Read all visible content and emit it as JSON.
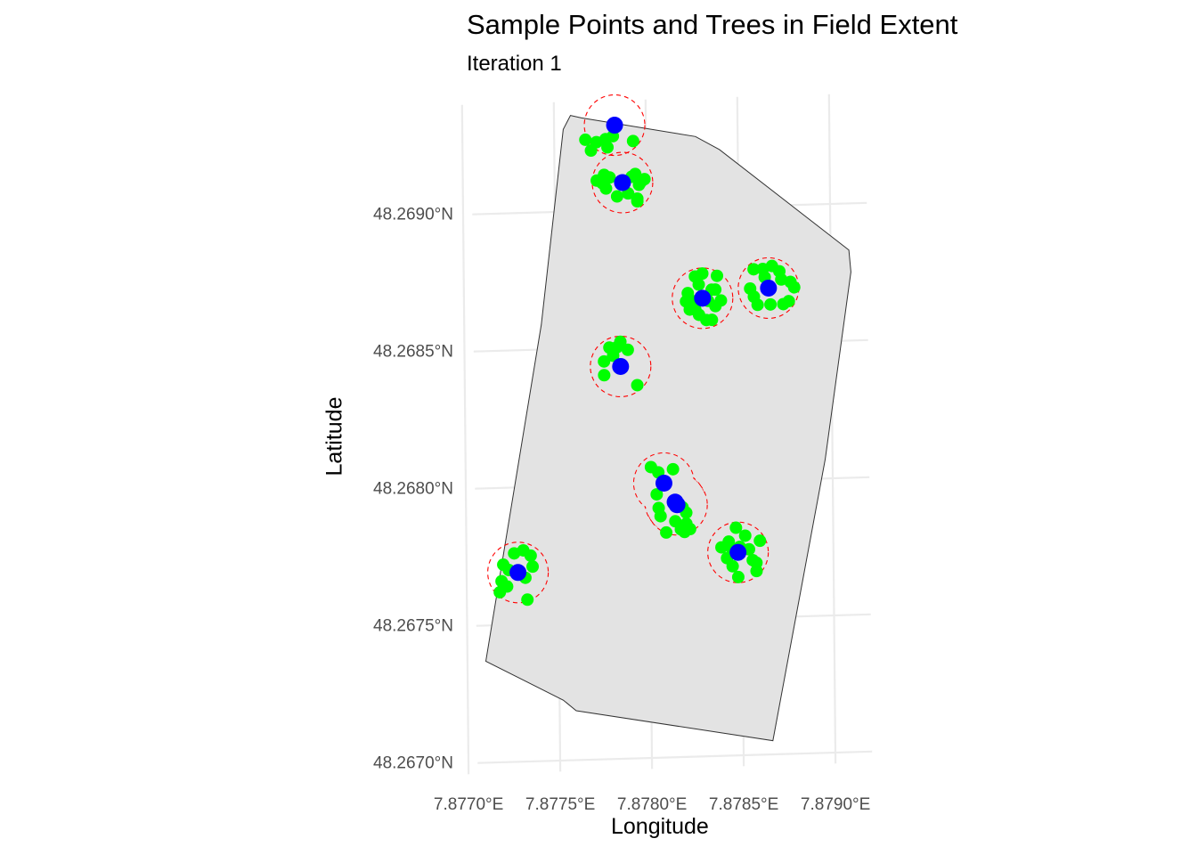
{
  "chart_data": {
    "type": "scatter",
    "title": "Sample Points and Trees in Field Extent",
    "subtitle": "Iteration 1",
    "xlabel": "Longitude",
    "ylabel": "Latitude",
    "xlim": [
      7.87705,
      7.8792
    ],
    "ylim": [
      48.26696,
      48.2694
    ],
    "x_ticks": [
      7.877,
      7.8775,
      7.878,
      7.8785,
      7.879
    ],
    "x_tick_labels": [
      "7.8770°E",
      "7.8775°E",
      "7.8780°E",
      "7.8785°E",
      "7.8790°E"
    ],
    "y_ticks": [
      48.267,
      48.2675,
      48.268,
      48.2685,
      48.269
    ],
    "y_tick_labels": [
      "48.2670°N",
      "48.2675°N",
      "48.2680°N",
      "48.2685°N",
      "48.2690°N"
    ],
    "grid": true,
    "colors": {
      "field_fill": "#e3e3e3",
      "field_stroke": "#333333",
      "trees": "#00ff00",
      "sample_points": "#0000ff",
      "buffer": "#ff0000",
      "grid": "#ebebeb"
    },
    "field_polygon": [
      [
        7.87759,
        48.26935
      ],
      [
        7.87765,
        48.26934
      ],
      [
        7.87827,
        48.26926
      ],
      [
        7.8784,
        48.26921
      ],
      [
        7.8791,
        48.26883
      ],
      [
        7.87911,
        48.26875
      ],
      [
        7.87896,
        48.26807
      ],
      [
        7.87866,
        48.26705
      ],
      [
        7.87759,
        48.26718
      ],
      [
        7.87752,
        48.26722
      ],
      [
        7.8771,
        48.26737
      ],
      [
        7.87742,
        48.26859
      ],
      [
        7.87755,
        48.2693
      ]
    ],
    "sample_points": [
      [
        7.87783,
        48.26931
      ],
      [
        7.87787,
        48.2691
      ],
      [
        7.8783,
        48.26867
      ],
      [
        7.87866,
        48.2687
      ],
      [
        7.87785,
        48.26843
      ],
      [
        7.87808,
        48.268
      ],
      [
        7.87814,
        48.26793
      ],
      [
        7.87815,
        48.26792
      ],
      [
        7.87848,
        48.26774
      ],
      [
        7.87728,
        48.26769
      ]
    ],
    "buffer_clusters": [
      [
        [
          7.87783,
          48.26931
        ]
      ],
      [
        [
          7.87787,
          48.2691
        ]
      ],
      [
        [
          7.8783,
          48.26867
        ]
      ],
      [
        [
          7.87866,
          48.2687
        ]
      ],
      [
        [
          7.87785,
          48.26843
        ]
      ],
      [
        [
          7.87808,
          48.268
        ],
        [
          7.87814,
          48.26793
        ],
        [
          7.87815,
          48.26792
        ]
      ],
      [
        [
          7.87848,
          48.26774
        ]
      ],
      [
        [
          7.87728,
          48.26769
        ]
      ]
    ],
    "trees": [
      [
        7.87767,
        48.26926
      ],
      [
        7.87773,
        48.26925
      ],
      [
        7.87778,
        48.26926
      ],
      [
        7.8777,
        48.26922
      ],
      [
        7.87793,
        48.26925
      ],
      [
        7.87779,
        48.26923
      ],
      [
        7.87782,
        48.26927
      ],
      [
        7.87773,
        48.26911
      ],
      [
        7.87778,
        48.26908
      ],
      [
        7.8778,
        48.26912
      ],
      [
        7.87794,
        48.26913
      ],
      [
        7.87797,
        48.2691
      ],
      [
        7.8779,
        48.26906
      ],
      [
        7.87784,
        48.26905
      ],
      [
        7.87795,
        48.26904
      ],
      [
        7.87796,
        48.26909
      ],
      [
        7.87799,
        48.26911
      ],
      [
        7.87776,
        48.2691
      ],
      [
        7.87792,
        48.26912
      ],
      [
        7.87795,
        48.26903
      ],
      [
        7.87777,
        48.26913
      ],
      [
        7.87826,
        48.26875
      ],
      [
        7.8783,
        48.26876
      ],
      [
        7.87838,
        48.26875
      ],
      [
        7.87822,
        48.26869
      ],
      [
        7.87835,
        48.2687
      ],
      [
        7.87823,
        48.26863
      ],
      [
        7.87825,
        48.26866
      ],
      [
        7.87828,
        48.26861
      ],
      [
        7.87832,
        48.26859
      ],
      [
        7.87837,
        48.26864
      ],
      [
        7.8784,
        48.26866
      ],
      [
        7.87835,
        48.26859
      ],
      [
        7.87828,
        48.26872
      ],
      [
        7.87821,
        48.26866
      ],
      [
        7.87833,
        48.26866
      ],
      [
        7.87837,
        48.2687
      ],
      [
        7.87826,
        48.26863
      ],
      [
        7.87858,
        48.26877
      ],
      [
        7.87863,
        48.26877
      ],
      [
        7.87868,
        48.26878
      ],
      [
        7.87872,
        48.26876
      ],
      [
        7.87878,
        48.26872
      ],
      [
        7.8788,
        48.2687
      ],
      [
        7.87858,
        48.26867
      ],
      [
        7.8786,
        48.26864
      ],
      [
        7.87867,
        48.26864
      ],
      [
        7.87874,
        48.26864
      ],
      [
        7.87877,
        48.26865
      ],
      [
        7.87864,
        48.26874
      ],
      [
        7.87873,
        48.26873
      ],
      [
        7.87856,
        48.2687
      ],
      [
        7.87779,
        48.2685
      ],
      [
        7.87783,
        48.2685
      ],
      [
        7.87785,
        48.26852
      ],
      [
        7.87789,
        48.26849
      ],
      [
        7.87776,
        48.26845
      ],
      [
        7.87781,
        48.26847
      ],
      [
        7.87776,
        48.2684
      ],
      [
        7.87794,
        48.26836
      ],
      [
        7.87801,
        48.26806
      ],
      [
        7.87805,
        48.26804
      ],
      [
        7.87813,
        48.26805
      ],
      [
        7.87804,
        48.26796
      ],
      [
        7.87805,
        48.26791
      ],
      [
        7.87806,
        48.26788
      ],
      [
        7.87818,
        48.26791
      ],
      [
        7.8782,
        48.26789
      ],
      [
        7.87814,
        48.26786
      ],
      [
        7.8782,
        48.26785
      ],
      [
        7.87822,
        48.26783
      ],
      [
        7.87809,
        48.26782
      ],
      [
        7.87817,
        48.26783
      ],
      [
        7.87819,
        48.26782
      ],
      [
        7.87839,
        48.26776
      ],
      [
        7.87843,
        48.26778
      ],
      [
        7.87847,
        48.26783
      ],
      [
        7.87842,
        48.26772
      ],
      [
        7.87845,
        48.26769
      ],
      [
        7.87849,
        48.26776
      ],
      [
        7.87852,
        48.2678
      ],
      [
        7.87854,
        48.26775
      ],
      [
        7.87856,
        48.26771
      ],
      [
        7.87858,
        48.2677
      ],
      [
        7.8786,
        48.26778
      ],
      [
        7.87848,
        48.26765
      ],
      [
        7.87858,
        48.26767
      ],
      [
        7.87845,
        48.26775
      ],
      [
        7.87718,
        48.26762
      ],
      [
        7.87719,
        48.26766
      ],
      [
        7.87723,
        48.2677
      ],
      [
        7.8772,
        48.26772
      ],
      [
        7.87726,
        48.26776
      ],
      [
        7.87731,
        48.26777
      ],
      [
        7.87735,
        48.26775
      ],
      [
        7.87736,
        48.26771
      ],
      [
        7.87732,
        48.26767
      ],
      [
        7.87722,
        48.26764
      ],
      [
        7.87733,
        48.26759
      ]
    ]
  }
}
